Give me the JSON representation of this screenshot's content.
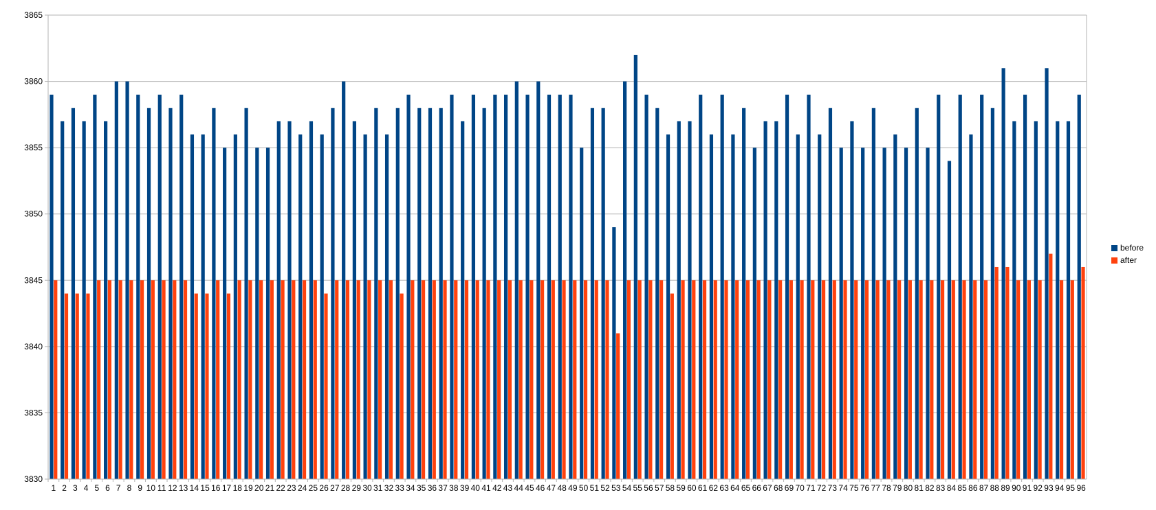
{
  "chart_data": {
    "type": "bar",
    "title": "",
    "xlabel": "",
    "ylabel": "",
    "ylim": [
      3830,
      3865
    ],
    "yticks": [
      3830,
      3835,
      3840,
      3845,
      3850,
      3855,
      3860,
      3865
    ],
    "grid": true,
    "legend_position": "right",
    "categories": [
      "1",
      "2",
      "3",
      "4",
      "5",
      "6",
      "7",
      "8",
      "9",
      "10",
      "11",
      "12",
      "13",
      "14",
      "15",
      "16",
      "17",
      "18",
      "19",
      "20",
      "21",
      "22",
      "23",
      "24",
      "25",
      "26",
      "27",
      "28",
      "29",
      "30",
      "31",
      "32",
      "33",
      "34",
      "35",
      "36",
      "37",
      "38",
      "39",
      "40",
      "41",
      "42",
      "43",
      "44",
      "45",
      "46",
      "47",
      "48",
      "49",
      "50",
      "51",
      "52",
      "53",
      "54",
      "55",
      "56",
      "57",
      "58",
      "59",
      "60",
      "61",
      "62",
      "63",
      "64",
      "65",
      "66",
      "67",
      "68",
      "69",
      "70",
      "71",
      "72",
      "73",
      "74",
      "75",
      "76",
      "77",
      "78",
      "79",
      "80",
      "81",
      "82",
      "83",
      "84",
      "85",
      "86",
      "87",
      "88",
      "89",
      "90",
      "91",
      "92",
      "93",
      "94",
      "95",
      "96"
    ],
    "series": [
      {
        "name": "before",
        "color": "#004586",
        "values": [
          3859,
          3857,
          3858,
          3857,
          3859,
          3857,
          3860,
          3860,
          3859,
          3858,
          3859,
          3858,
          3859,
          3856,
          3856,
          3858,
          3855,
          3856,
          3858,
          3855,
          3855,
          3857,
          3857,
          3856,
          3857,
          3856,
          3858,
          3860,
          3857,
          3856,
          3858,
          3856,
          3858,
          3859,
          3858,
          3858,
          3858,
          3859,
          3857,
          3859,
          3858,
          3859,
          3859,
          3860,
          3859,
          3860,
          3859,
          3859,
          3859,
          3855,
          3858,
          3858,
          3849,
          3860,
          3862,
          3859,
          3858,
          3856,
          3857,
          3857,
          3859,
          3856,
          3859,
          3856,
          3858,
          3855,
          3857,
          3857,
          3859,
          3856,
          3859,
          3856,
          3858,
          3855,
          3857,
          3855,
          3858,
          3855,
          3856,
          3855,
          3858,
          3855,
          3859,
          3854,
          3859,
          3856,
          3859,
          3858,
          3861,
          3857,
          3859,
          3857,
          3861,
          3857,
          3857,
          3859
        ]
      },
      {
        "name": "after",
        "color": "#ff420e",
        "values": [
          3845,
          3844,
          3844,
          3844,
          3845,
          3845,
          3845,
          3845,
          3845,
          3845,
          3845,
          3845,
          3845,
          3844,
          3844,
          3845,
          3844,
          3845,
          3845,
          3845,
          3845,
          3845,
          3845,
          3845,
          3845,
          3844,
          3845,
          3845,
          3845,
          3845,
          3845,
          3845,
          3844,
          3845,
          3845,
          3845,
          3845,
          3845,
          3845,
          3845,
          3845,
          3845,
          3845,
          3845,
          3845,
          3845,
          3845,
          3845,
          3845,
          3845,
          3845,
          3845,
          3841,
          3845,
          3845,
          3845,
          3845,
          3844,
          3845,
          3845,
          3845,
          3845,
          3845,
          3845,
          3845,
          3845,
          3845,
          3845,
          3845,
          3845,
          3845,
          3845,
          3845,
          3845,
          3845,
          3845,
          3845,
          3845,
          3845,
          3845,
          3845,
          3845,
          3845,
          3845,
          3845,
          3845,
          3845,
          3846,
          3846,
          3845,
          3845,
          3845,
          3847,
          3845,
          3845,
          3846
        ]
      }
    ]
  }
}
